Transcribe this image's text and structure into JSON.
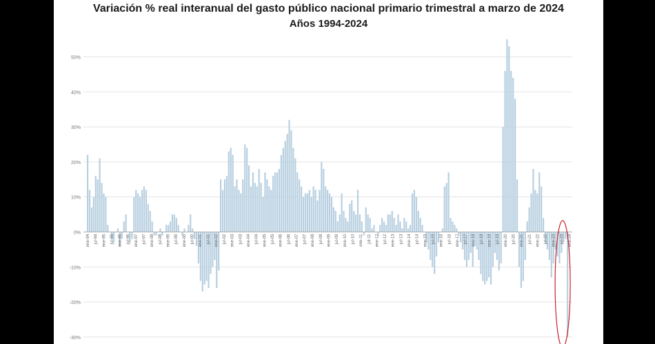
{
  "chart_data": {
    "type": "bar",
    "title": "Variación %  real interanual del gasto público nacional primario trimestral a marzo de 2024",
    "subtitle": "Años 1994-2024",
    "ylim": [
      -32,
      56
    ],
    "yticks": [
      {
        "value": 50,
        "label": "50%"
      },
      {
        "value": 40,
        "label": "40%"
      },
      {
        "value": 30,
        "label": "30%"
      },
      {
        "value": 20,
        "label": "20%"
      },
      {
        "value": 10,
        "label": "10%"
      },
      {
        "value": 0,
        "label": "0%"
      },
      {
        "value": -10,
        "label": "-10%"
      },
      {
        "value": -20,
        "label": "-20%"
      },
      {
        "value": -30,
        "label": "-30%"
      }
    ],
    "xtick_labels": [
      "ene-94",
      "jul-94",
      "ene-95",
      "jul-95",
      "ene-96",
      "jul-96",
      "ene-97",
      "jul-97",
      "ene-98",
      "jul-98",
      "ene-99",
      "jul-99",
      "ene-00",
      "jul-00",
      "ene-01",
      "jul-01",
      "ene-02",
      "jul-02",
      "ene-03",
      "jul-03",
      "ene-04",
      "jul-04",
      "ene-05",
      "jul-05",
      "ene-06",
      "jul-06",
      "ene-07",
      "jul-07",
      "ene-08",
      "jul-08",
      "ene-09",
      "jul-09",
      "ene-10",
      "jul-10",
      "ene-11",
      "jul-11",
      "ene-12",
      "jul-12",
      "ene-13",
      "jul-13",
      "ene-14",
      "jul-14",
      "ene-15",
      "jul-15",
      "ene-16",
      "jul-16",
      "ene-17",
      "jul-17",
      "ene-18",
      "jul-18",
      "ene-19",
      "jul-19",
      "ene-20",
      "jul-20",
      "ene-21",
      "jul-21",
      "ene-22",
      "jul-22",
      "ene-23",
      "jul-23",
      "ene-24"
    ],
    "series": [
      {
        "values": [
          22,
          12,
          7,
          10,
          16,
          15,
          21,
          14,
          11,
          10,
          2,
          0,
          -2,
          -3,
          0,
          1,
          -4,
          -2,
          3,
          5,
          0,
          -3,
          -2,
          10,
          12,
          11,
          10,
          12,
          13,
          12,
          8,
          6,
          3,
          -1,
          -1,
          0,
          1,
          -1,
          0,
          2,
          2,
          3,
          5,
          5,
          4,
          2,
          0,
          -1,
          1,
          0,
          2,
          5,
          1,
          -2,
          -4,
          -9,
          -14,
          -17,
          -15,
          -14,
          -16,
          -12,
          -10,
          -8,
          -16,
          -11,
          15,
          12,
          15,
          16,
          23,
          24,
          22,
          13,
          15,
          12,
          11,
          15,
          25,
          24,
          19,
          13,
          17,
          14,
          13,
          18,
          14,
          10,
          17,
          15,
          13,
          12,
          16,
          17,
          17,
          18,
          22,
          24,
          26,
          28,
          32,
          29,
          24,
          21,
          17,
          15,
          13,
          10,
          11,
          11,
          12,
          10,
          13,
          12,
          9,
          12,
          20,
          18,
          13,
          12,
          11,
          10,
          7,
          6,
          3,
          5,
          11,
          6,
          4,
          3,
          8,
          9,
          6,
          5,
          12,
          5,
          3,
          -1,
          7,
          5,
          4,
          1,
          2,
          0,
          -1,
          2,
          4,
          3,
          2,
          5,
          5,
          6,
          4,
          2,
          5,
          3,
          1,
          4,
          3,
          1,
          2,
          11,
          12,
          10,
          6,
          4,
          2,
          0,
          -3,
          -5,
          -8,
          -10,
          -12,
          -7,
          -3,
          0,
          1,
          13,
          14,
          17,
          4,
          3,
          2,
          1,
          -1,
          -3,
          -5,
          -8,
          -10,
          -8,
          -6,
          -10,
          -4,
          -5,
          -8,
          -12,
          -14,
          -15,
          -14,
          -13,
          -15,
          -10,
          -6,
          -8,
          -11,
          -9,
          30,
          46,
          55,
          53,
          46,
          44,
          38,
          15,
          -10,
          -16,
          -14,
          -8,
          3,
          7,
          11,
          18,
          12,
          11,
          17,
          13,
          4,
          -3,
          -5,
          -8,
          -13,
          -9,
          -5,
          -7,
          -9,
          -6,
          -3,
          -2,
          -30
        ]
      }
    ],
    "annotation": "red ellipse highlighting ene-24 bar"
  }
}
